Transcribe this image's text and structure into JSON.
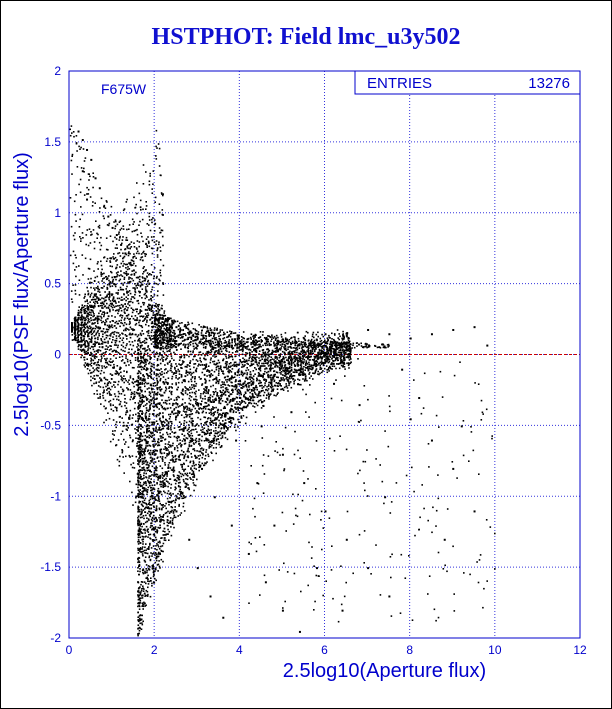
{
  "title": "HSTPHOT: Field lmc_u3y502",
  "colors": {
    "axis": "#0000cc",
    "grid": "#3333dd",
    "points": "#000000",
    "zero_line": "#cc0000",
    "title": "#1010d0"
  },
  "chart_data": {
    "type": "scatter",
    "title": "HSTPHOT: Field lmc_u3y502",
    "xlabel": "2.5log10(Aperture flux)",
    "ylabel": "2.5log10(PSF flux/Aperture flux)",
    "xlim": [
      0,
      12
    ],
    "ylim": [
      -2,
      2
    ],
    "x_ticks": [
      "0",
      "2",
      "4",
      "6",
      "8",
      "10",
      "12"
    ],
    "y_ticks": [
      "2",
      "1.5",
      "1",
      "0.5",
      "0",
      "-0.5",
      "-1",
      "-1.5",
      "-2"
    ],
    "grid": true,
    "filter_label": "F675W",
    "stats": {
      "label": "ENTRIES",
      "value": "13276"
    },
    "reference_line": {
      "y": 0,
      "style": "dashed",
      "color": "#cc0000"
    },
    "points": [
      [
        0.2,
        1.58
      ],
      [
        0.3,
        1.52
      ],
      [
        0.4,
        1.45
      ],
      [
        0.5,
        1.38
      ],
      [
        0.3,
        1.3
      ],
      [
        0.6,
        1.25
      ],
      [
        0.7,
        1.18
      ],
      [
        0.4,
        1.1
      ],
      [
        0.8,
        1.05
      ],
      [
        0.9,
        0.98
      ],
      [
        1.0,
        0.9
      ],
      [
        1.1,
        0.85
      ],
      [
        1.2,
        0.78
      ],
      [
        1.3,
        0.72
      ],
      [
        1.4,
        0.65
      ],
      [
        1.5,
        0.6
      ],
      [
        1.6,
        0.55
      ],
      [
        1.7,
        0.5
      ],
      [
        1.8,
        0.45
      ],
      [
        1.9,
        0.4
      ],
      [
        2.0,
        0.35
      ],
      [
        2.1,
        0.32
      ],
      [
        2.2,
        0.28
      ],
      [
        2.3,
        0.25
      ],
      [
        2.4,
        0.22
      ],
      [
        2.5,
        0.2
      ],
      [
        2.6,
        0.18
      ],
      [
        2.8,
        0.15
      ],
      [
        3.0,
        0.12
      ],
      [
        3.2,
        0.1
      ],
      [
        3.5,
        0.08
      ],
      [
        3.8,
        0.07
      ],
      [
        4.0,
        0.1
      ],
      [
        4.3,
        0.09
      ],
      [
        4.6,
        0.12
      ],
      [
        5.0,
        0.1
      ],
      [
        5.5,
        0.12
      ],
      [
        6.0,
        0.15
      ],
      [
        6.5,
        0.14
      ],
      [
        7.0,
        0.18
      ],
      [
        7.5,
        0.15
      ],
      [
        8.0,
        0.12
      ],
      [
        8.5,
        0.15
      ],
      [
        9.0,
        0.18
      ],
      [
        9.5,
        0.2
      ],
      [
        9.8,
        0.07
      ],
      [
        1.5,
        -0.3
      ],
      [
        1.8,
        -0.5
      ],
      [
        2.0,
        -0.7
      ],
      [
        2.2,
        -0.9
      ],
      [
        2.5,
        -1.1
      ],
      [
        2.8,
        -1.3
      ],
      [
        3.0,
        -1.5
      ],
      [
        3.3,
        -1.7
      ],
      [
        3.6,
        -1.85
      ],
      [
        2.4,
        -0.4
      ],
      [
        2.7,
        -0.6
      ],
      [
        3.1,
        -0.8
      ],
      [
        3.4,
        -1.0
      ],
      [
        3.8,
        -1.2
      ],
      [
        4.2,
        -1.4
      ],
      [
        4.6,
        -1.6
      ],
      [
        5.0,
        -1.8
      ],
      [
        5.4,
        -1.95
      ],
      [
        4.0,
        -0.3
      ],
      [
        4.5,
        -0.5
      ],
      [
        5.0,
        -0.7
      ],
      [
        5.5,
        -0.9
      ],
      [
        6.0,
        -1.1
      ],
      [
        6.5,
        -1.3
      ],
      [
        7.0,
        -1.5
      ],
      [
        7.5,
        -1.7
      ],
      [
        8.0,
        -0.45
      ],
      [
        8.5,
        -0.6
      ],
      [
        9.0,
        -0.8
      ],
      [
        9.5,
        -1.1
      ],
      [
        6.2,
        -0.2
      ],
      [
        6.8,
        -0.35
      ],
      [
        7.4,
        -1.0
      ],
      [
        7.8,
        -0.1
      ],
      [
        8.2,
        -0.3
      ],
      [
        8.8,
        -1.3
      ],
      [
        9.2,
        -0.5
      ],
      [
        6.4,
        -1.8
      ],
      [
        5.8,
        -1.5
      ],
      [
        5.2,
        -0.4
      ],
      [
        4.8,
        -1.2
      ],
      [
        4.4,
        -0.9
      ],
      [
        3.9,
        -0.6
      ],
      [
        3.5,
        -0.3
      ]
    ]
  }
}
